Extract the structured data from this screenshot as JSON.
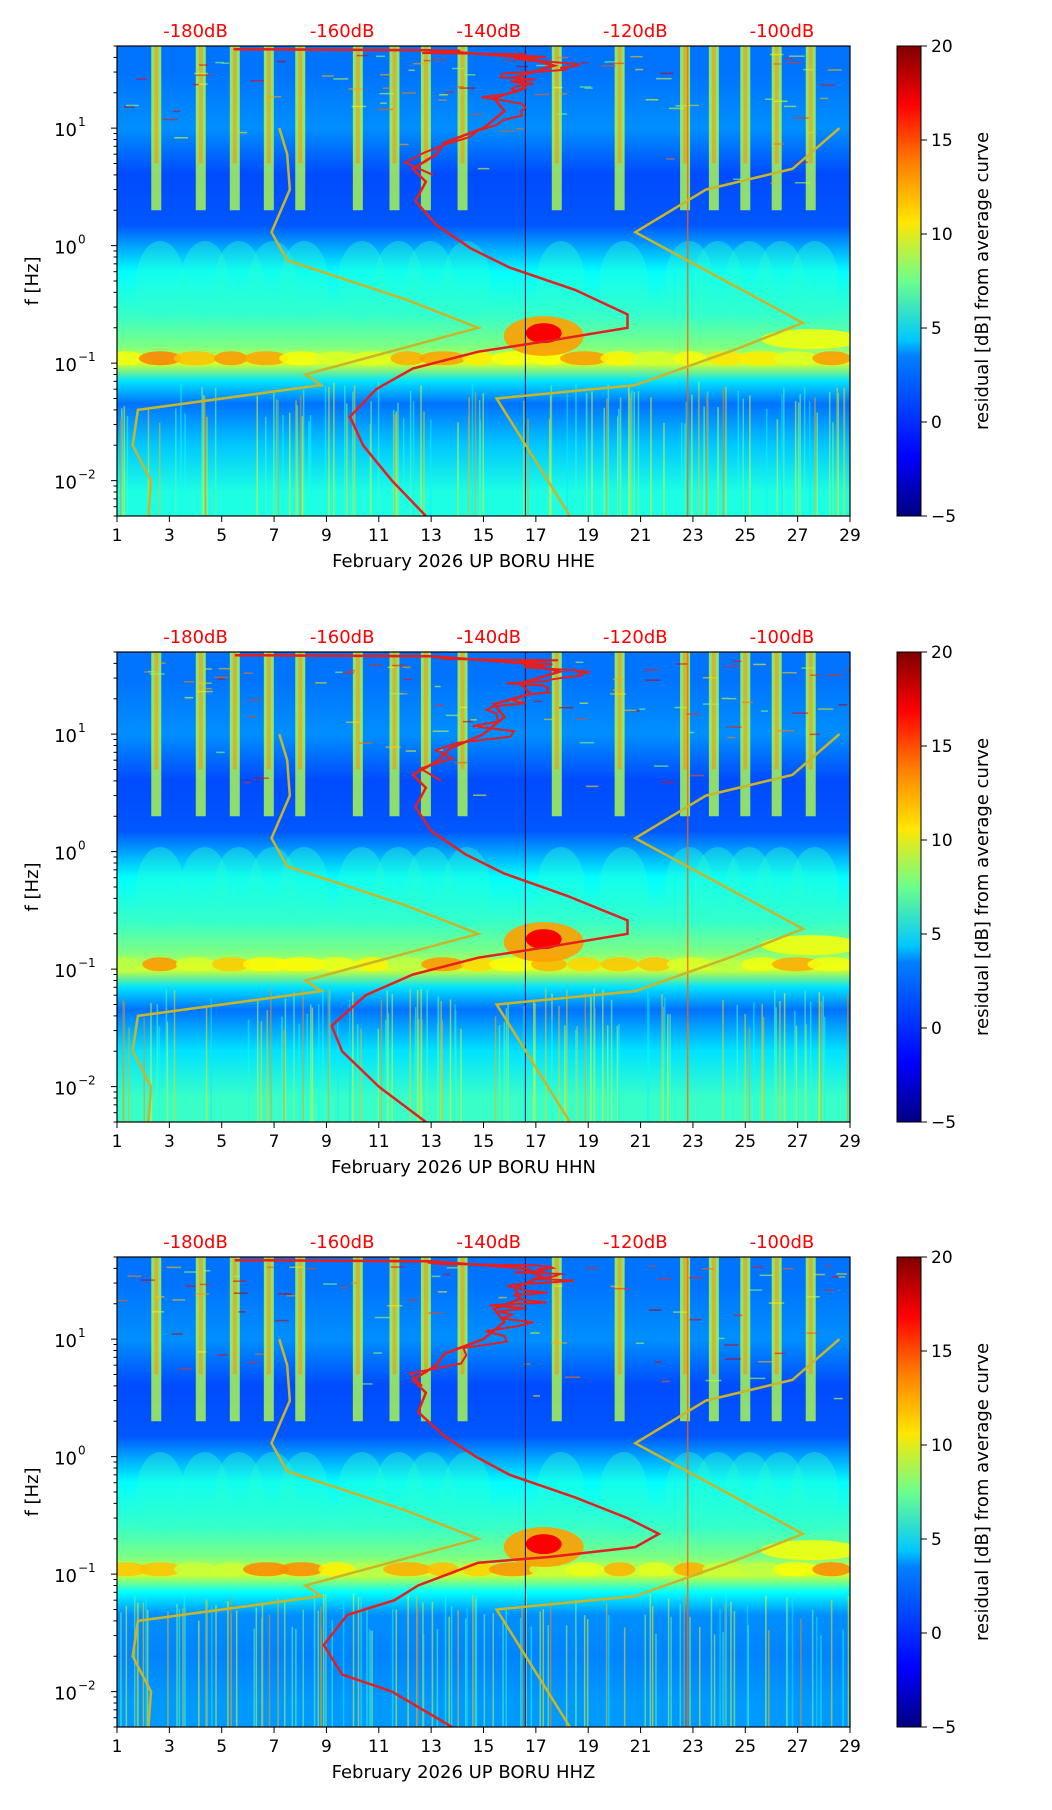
{
  "colors": {
    "db_label": "#ff0000",
    "nlnm_nhnm": "#c8b52a",
    "average_curve": "#e61e1e",
    "background": "#10108a"
  },
  "chart_data": [
    {
      "type": "heatmap",
      "channel": "HHE",
      "xlabel": "February 2026 UP BORU  HHE",
      "ylabel": "f [Hz]",
      "x_ticks": [
        "1",
        "3",
        "5",
        "7",
        "9",
        "11",
        "13",
        "15",
        "17",
        "19",
        "21",
        "23",
        "25",
        "27",
        "29"
      ],
      "x_range": [
        1,
        29
      ],
      "y_scale": "log",
      "y_range": [
        0.005,
        50
      ],
      "y_ticks": [
        {
          "value": 10,
          "base": "10",
          "exp": "1"
        },
        {
          "value": 1,
          "base": "10",
          "exp": "0"
        },
        {
          "value": 0.1,
          "base": "10",
          "exp": "−1"
        },
        {
          "value": 0.01,
          "base": "10",
          "exp": "−2"
        }
      ],
      "top_axis_labels": [
        {
          "day": 4,
          "label": "-180dB"
        },
        {
          "day": 9.6,
          "label": "-160dB"
        },
        {
          "day": 15.2,
          "label": "-140dB"
        },
        {
          "day": 20.8,
          "label": "-120dB"
        },
        {
          "day": 26.4,
          "label": "-100dB"
        }
      ],
      "colorbar": {
        "label": "residual [dB] from average curve",
        "range": [
          -5,
          20
        ],
        "ticks": [
          "20",
          "15",
          "10",
          "5",
          "0",
          "−5"
        ]
      },
      "average_curve": [
        [
          12.8,
          0.005
        ],
        [
          11.5,
          0.01
        ],
        [
          10.4,
          0.02
        ],
        [
          9.9,
          0.035
        ],
        [
          10.9,
          0.06
        ],
        [
          12.3,
          0.09
        ],
        [
          14.8,
          0.125
        ],
        [
          17.5,
          0.155
        ],
        [
          20.5,
          0.2
        ],
        [
          20.5,
          0.26
        ],
        [
          18.5,
          0.42
        ],
        [
          16,
          0.65
        ],
        [
          14.5,
          0.95
        ],
        [
          13.2,
          1.5
        ],
        [
          12.4,
          2.4
        ],
        [
          12.8,
          3.5
        ],
        [
          12.3,
          4.5
        ],
        [
          13.2,
          6
        ],
        [
          13.5,
          7.5
        ],
        [
          15,
          10
        ],
        [
          15.8,
          14
        ],
        [
          15.4,
          18
        ],
        [
          16.6,
          22
        ],
        [
          16.2,
          27
        ],
        [
          17.7,
          34
        ],
        [
          16.6,
          40
        ],
        [
          13,
          46
        ],
        [
          5.5,
          47
        ]
      ],
      "nlnm_curve": [
        [
          2.2,
          0.005
        ],
        [
          2.3,
          0.01
        ],
        [
          1.6,
          0.02
        ],
        [
          1.8,
          0.04
        ],
        [
          8.8,
          0.065
        ],
        [
          8.2,
          0.08
        ],
        [
          14.8,
          0.2
        ],
        [
          12,
          0.35
        ],
        [
          7.5,
          0.75
        ],
        [
          6.9,
          1.3
        ],
        [
          7.6,
          3
        ],
        [
          7.5,
          6
        ],
        [
          7.2,
          10
        ]
      ],
      "nhnm_curve": [
        [
          18.3,
          0.005
        ],
        [
          15.5,
          0.05
        ],
        [
          20.8,
          0.065
        ],
        [
          24.6,
          0.13
        ],
        [
          27.2,
          0.22
        ],
        [
          20.8,
          1.3
        ],
        [
          23.5,
          3
        ],
        [
          26.8,
          4.5
        ],
        [
          28.6,
          10
        ]
      ],
      "background_bands": [
        {
          "f": 30,
          "level": 0.25
        },
        {
          "f": 10,
          "level": 0.3
        },
        {
          "f": 4,
          "level": 0.18
        },
        {
          "f": 1.5,
          "level": 0.2
        },
        {
          "f": 0.6,
          "level": 0.5
        },
        {
          "f": 0.25,
          "level": 0.6
        },
        {
          "f": 0.14,
          "level": 0.72
        },
        {
          "f": 0.1,
          "level": 0.88
        },
        {
          "f": 0.07,
          "level": 0.45
        },
        {
          "f": 0.045,
          "level": 0.25
        },
        {
          "f": 0.02,
          "level": 0.4
        },
        {
          "f": 0.008,
          "level": 0.55
        }
      ],
      "daily_bursts": [
        2.5,
        4.2,
        5.5,
        6.8,
        8,
        10.2,
        11.6,
        12.8,
        14.2,
        17.8,
        20.2,
        22.7,
        23.8,
        25,
        26.2,
        27.5
      ]
    },
    {
      "type": "heatmap",
      "channel": "HHN",
      "xlabel": "February 2026 UP BORU  HHN",
      "ylabel": "f [Hz]",
      "x_ticks": [
        "1",
        "3",
        "5",
        "7",
        "9",
        "11",
        "13",
        "15",
        "17",
        "19",
        "21",
        "23",
        "25",
        "27",
        "29"
      ],
      "x_range": [
        1,
        29
      ],
      "y_scale": "log",
      "y_range": [
        0.005,
        50
      ],
      "y_ticks": [
        {
          "value": 10,
          "base": "10",
          "exp": "1"
        },
        {
          "value": 1,
          "base": "10",
          "exp": "0"
        },
        {
          "value": 0.1,
          "base": "10",
          "exp": "−1"
        },
        {
          "value": 0.01,
          "base": "10",
          "exp": "−2"
        }
      ],
      "top_axis_labels": [
        {
          "day": 4,
          "label": "-180dB"
        },
        {
          "day": 9.6,
          "label": "-160dB"
        },
        {
          "day": 15.2,
          "label": "-140dB"
        },
        {
          "day": 20.8,
          "label": "-120dB"
        },
        {
          "day": 26.4,
          "label": "-100dB"
        }
      ],
      "colorbar": {
        "label": "residual [dB] from average curve",
        "range": [
          -5,
          20
        ],
        "ticks": [
          "20",
          "15",
          "10",
          "5",
          "0",
          "−5"
        ]
      },
      "average_curve": [
        [
          12.8,
          0.005
        ],
        [
          11,
          0.01
        ],
        [
          9.6,
          0.02
        ],
        [
          9.2,
          0.033
        ],
        [
          10.5,
          0.06
        ],
        [
          12.3,
          0.09
        ],
        [
          14.8,
          0.125
        ],
        [
          17.5,
          0.155
        ],
        [
          20.5,
          0.2
        ],
        [
          20.5,
          0.26
        ],
        [
          18.2,
          0.42
        ],
        [
          15.8,
          0.65
        ],
        [
          14.3,
          0.95
        ],
        [
          13,
          1.5
        ],
        [
          12.4,
          2.4
        ],
        [
          12.8,
          3.5
        ],
        [
          12.3,
          4.5
        ],
        [
          13.3,
          6
        ],
        [
          13.7,
          7.5
        ],
        [
          15,
          10
        ],
        [
          15.8,
          14
        ],
        [
          15.4,
          18
        ],
        [
          16.8,
          22
        ],
        [
          16.4,
          27
        ],
        [
          17.9,
          34
        ],
        [
          16.6,
          40
        ],
        [
          13,
          46
        ],
        [
          5.5,
          47
        ]
      ],
      "nlnm_curve": [
        [
          2.2,
          0.005
        ],
        [
          2.3,
          0.01
        ],
        [
          1.6,
          0.02
        ],
        [
          1.8,
          0.04
        ],
        [
          8.8,
          0.065
        ],
        [
          8.2,
          0.08
        ],
        [
          14.8,
          0.2
        ],
        [
          12,
          0.35
        ],
        [
          7.5,
          0.75
        ],
        [
          6.9,
          1.3
        ],
        [
          7.6,
          3
        ],
        [
          7.5,
          6
        ],
        [
          7.2,
          10
        ]
      ],
      "nhnm_curve": [
        [
          18.3,
          0.005
        ],
        [
          15.5,
          0.05
        ],
        [
          20.8,
          0.065
        ],
        [
          24.6,
          0.13
        ],
        [
          27.2,
          0.22
        ],
        [
          20.8,
          1.3
        ],
        [
          23.5,
          3
        ],
        [
          26.8,
          4.5
        ],
        [
          28.6,
          10
        ]
      ],
      "background_bands": [
        {
          "f": 30,
          "level": 0.25
        },
        {
          "f": 10,
          "level": 0.3
        },
        {
          "f": 4,
          "level": 0.18
        },
        {
          "f": 1.5,
          "level": 0.2
        },
        {
          "f": 0.6,
          "level": 0.5
        },
        {
          "f": 0.25,
          "level": 0.6
        },
        {
          "f": 0.14,
          "level": 0.72
        },
        {
          "f": 0.1,
          "level": 0.88
        },
        {
          "f": 0.07,
          "level": 0.45
        },
        {
          "f": 0.045,
          "level": 0.25
        },
        {
          "f": 0.02,
          "level": 0.45
        },
        {
          "f": 0.008,
          "level": 0.6
        }
      ],
      "daily_bursts": [
        2.5,
        4.2,
        5.5,
        6.8,
        8,
        10.2,
        11.6,
        12.8,
        14.2,
        17.8,
        20.2,
        22.7,
        23.8,
        25,
        26.2,
        27.5
      ]
    },
    {
      "type": "heatmap",
      "channel": "HHZ",
      "xlabel": "February 2026 UP BORU  HHZ",
      "ylabel": "f [Hz]",
      "x_ticks": [
        "1",
        "3",
        "5",
        "7",
        "9",
        "11",
        "13",
        "15",
        "17",
        "19",
        "21",
        "23",
        "25",
        "27",
        "29"
      ],
      "x_range": [
        1,
        29
      ],
      "y_scale": "log",
      "y_range": [
        0.005,
        50
      ],
      "y_ticks": [
        {
          "value": 10,
          "base": "10",
          "exp": "1"
        },
        {
          "value": 1,
          "base": "10",
          "exp": "0"
        },
        {
          "value": 0.1,
          "base": "10",
          "exp": "−1"
        },
        {
          "value": 0.01,
          "base": "10",
          "exp": "−2"
        }
      ],
      "top_axis_labels": [
        {
          "day": 4,
          "label": "-180dB"
        },
        {
          "day": 9.6,
          "label": "-160dB"
        },
        {
          "day": 15.2,
          "label": "-140dB"
        },
        {
          "day": 20.8,
          "label": "-120dB"
        },
        {
          "day": 26.4,
          "label": "-100dB"
        }
      ],
      "colorbar": {
        "label": "residual [dB] from average curve",
        "range": [
          -5,
          20
        ],
        "ticks": [
          "20",
          "15",
          "10",
          "5",
          "0",
          "−5"
        ]
      },
      "average_curve": [
        [
          13.8,
          0.005
        ],
        [
          11.5,
          0.01
        ],
        [
          9.6,
          0.014
        ],
        [
          8.9,
          0.025
        ],
        [
          9.8,
          0.045
        ],
        [
          11.6,
          0.06
        ],
        [
          12.5,
          0.08
        ],
        [
          14.8,
          0.125
        ],
        [
          17.5,
          0.14
        ],
        [
          20.8,
          0.17
        ],
        [
          21.7,
          0.22
        ],
        [
          20.5,
          0.3
        ],
        [
          18.5,
          0.45
        ],
        [
          16,
          0.7
        ],
        [
          14.7,
          1
        ],
        [
          13.5,
          1.5
        ],
        [
          12.5,
          2.4
        ],
        [
          12.8,
          3.5
        ],
        [
          12.3,
          4.5
        ],
        [
          13.2,
          6
        ],
        [
          13.5,
          7.5
        ],
        [
          15,
          10
        ],
        [
          15.8,
          14
        ],
        [
          15.4,
          18
        ],
        [
          16.4,
          22
        ],
        [
          16.2,
          27
        ],
        [
          17.2,
          34
        ],
        [
          16.6,
          40
        ],
        [
          13,
          46
        ],
        [
          5.5,
          47
        ]
      ],
      "nlnm_curve": [
        [
          2.2,
          0.005
        ],
        [
          2.3,
          0.01
        ],
        [
          1.6,
          0.02
        ],
        [
          1.8,
          0.04
        ],
        [
          8.8,
          0.065
        ],
        [
          8.2,
          0.08
        ],
        [
          14.8,
          0.2
        ],
        [
          12,
          0.35
        ],
        [
          7.5,
          0.75
        ],
        [
          6.9,
          1.3
        ],
        [
          7.6,
          3
        ],
        [
          7.5,
          6
        ],
        [
          7.2,
          10
        ]
      ],
      "nhnm_curve": [
        [
          18.3,
          0.005
        ],
        [
          15.5,
          0.05
        ],
        [
          20.8,
          0.065
        ],
        [
          24.6,
          0.13
        ],
        [
          27.2,
          0.22
        ],
        [
          20.8,
          1.3
        ],
        [
          23.5,
          3
        ],
        [
          26.8,
          4.5
        ],
        [
          28.6,
          10
        ]
      ],
      "background_bands": [
        {
          "f": 30,
          "level": 0.25
        },
        {
          "f": 10,
          "level": 0.3
        },
        {
          "f": 4,
          "level": 0.18
        },
        {
          "f": 1.5,
          "level": 0.2
        },
        {
          "f": 0.6,
          "level": 0.5
        },
        {
          "f": 0.25,
          "level": 0.6
        },
        {
          "f": 0.14,
          "level": 0.72
        },
        {
          "f": 0.1,
          "level": 0.88
        },
        {
          "f": 0.07,
          "level": 0.5
        },
        {
          "f": 0.045,
          "level": 0.3
        },
        {
          "f": 0.02,
          "level": 0.28
        },
        {
          "f": 0.008,
          "level": 0.32
        }
      ],
      "daily_bursts": [
        2.5,
        4.2,
        5.5,
        6.8,
        8,
        10.2,
        11.6,
        12.8,
        14.2,
        17.8,
        20.2,
        22.7,
        23.8,
        25,
        26.2,
        27.5
      ]
    }
  ]
}
